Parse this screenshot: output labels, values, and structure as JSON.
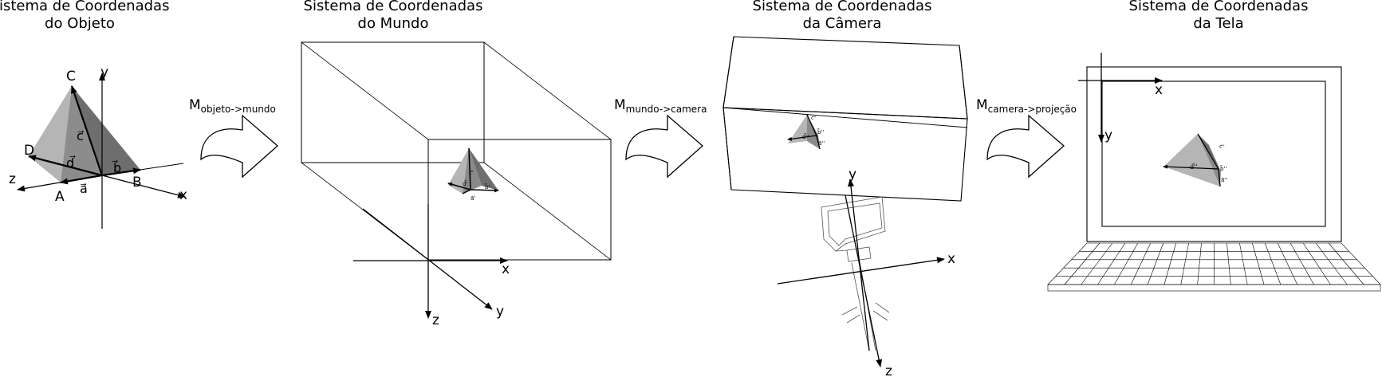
{
  "panels": [
    {
      "title_l1": "Sistema de Coordenadas",
      "title_l2": "do Objeto"
    },
    {
      "title_l1": "Sistema de Coordenadas",
      "title_l2": "do Mundo"
    },
    {
      "title_l1": "Sistema de Coordenadas",
      "title_l2": "da Câmera"
    },
    {
      "title_l1": "Sistema de Coordenadas",
      "title_l2": "da Tela"
    }
  ],
  "transforms": [
    {
      "base": "M",
      "sub": "objeto->mundo"
    },
    {
      "base": "M",
      "sub": "mundo->camera"
    },
    {
      "base": "M",
      "sub": "camera->projeção"
    }
  ],
  "object_labels": {
    "C": "C",
    "D": "D",
    "A": "A",
    "B": "B",
    "x": "x",
    "y": "y",
    "z": "z",
    "vec_a": "a⃗",
    "vec_b": "b⃗",
    "vec_c": "c⃗",
    "vec_d": "d⃗"
  },
  "world_labels": {
    "x": "x",
    "y": "y",
    "z": "z",
    "vec_a": "a⃗'",
    "vec_b": "b⃗'",
    "vec_c": "c⃗'",
    "vec_d": "d⃗'"
  },
  "camera_labels": {
    "x": "x",
    "y": "y",
    "z": "z",
    "vec_a": "a⃗''",
    "vec_b": "b⃗''",
    "vec_c": "c⃗''",
    "vec_d": "d⃗''"
  },
  "screen_labels": {
    "x": "x",
    "y": "y",
    "vec_a": "a⃗''",
    "vec_b": "b⃗''",
    "vec_c": "c⃗''",
    "vec_d": "d⃗''"
  },
  "colors": {
    "face_light": "#b3b3b3",
    "face_mid": "#9a9a9a",
    "face_dark": "#707070",
    "stroke": "#000000",
    "thin": "#333333"
  }
}
